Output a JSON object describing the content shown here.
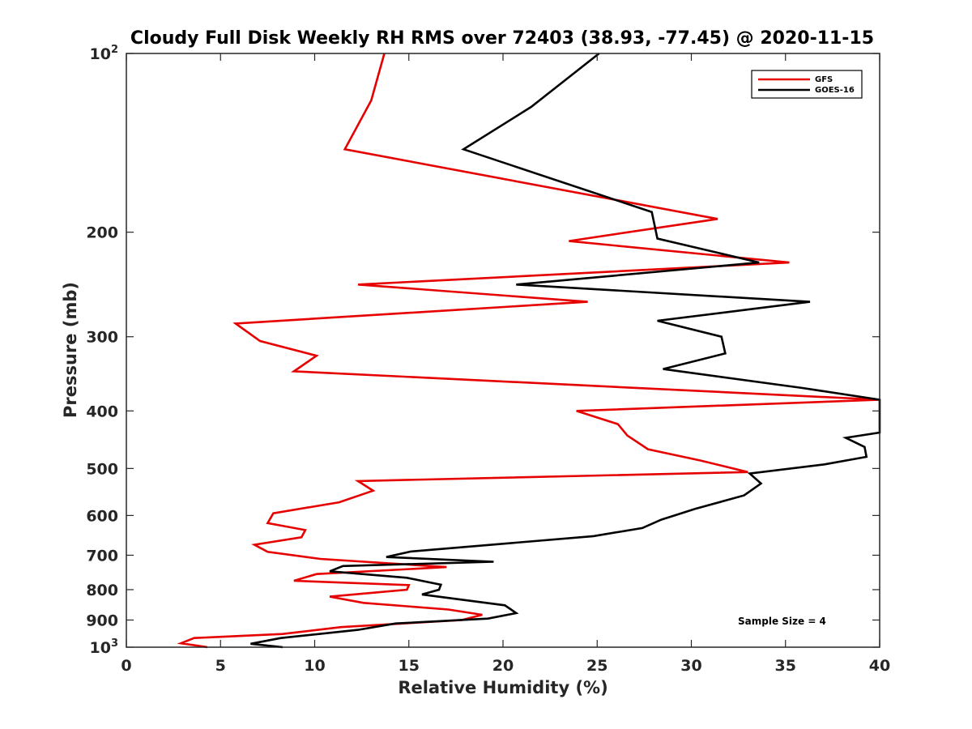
{
  "chart_data": {
    "type": "line",
    "title": "Cloudy Full Disk Weekly RH RMS over 72403 (38.93, -77.45) @ 2020-11-15",
    "xlabel": "Relative Humidity (%)",
    "ylabel": "Pressure (mb)",
    "xlim": [
      0,
      40
    ],
    "ylim": [
      100,
      1000
    ],
    "y_scale": "log",
    "y_reversed": true,
    "grid": false,
    "legend_position": "top-right",
    "x_ticks": [
      "0",
      "5",
      "10",
      "15",
      "20",
      "25",
      "30",
      "35",
      "40"
    ],
    "y_ticks": [
      {
        "value": 100,
        "base": "10",
        "exp": "2"
      },
      {
        "value": 200,
        "label": "200"
      },
      {
        "value": 300,
        "label": "300"
      },
      {
        "value": 400,
        "label": "400"
      },
      {
        "value": 500,
        "label": "500"
      },
      {
        "value": 600,
        "label": "600"
      },
      {
        "value": 700,
        "label": "700"
      },
      {
        "value": 800,
        "label": "800"
      },
      {
        "value": 900,
        "label": "900"
      },
      {
        "value": 1000,
        "base": "10",
        "exp": "3"
      }
    ],
    "annotation": "Sample Size = 4",
    "series": [
      {
        "name": "GFS",
        "color": "#e60000",
        "points": [
          [
            13.7,
            100
          ],
          [
            13,
            120
          ],
          [
            11.6,
            145
          ],
          [
            31.4,
            190
          ],
          [
            23.5,
            207
          ],
          [
            35.2,
            225
          ],
          [
            12.3,
            245
          ],
          [
            24.5,
            262
          ],
          [
            5.8,
            285
          ],
          [
            7.1,
            305
          ],
          [
            10.1,
            323
          ],
          [
            8.9,
            343
          ],
          [
            40.0,
            383
          ],
          [
            23.9,
            400
          ],
          [
            26.1,
            421
          ],
          [
            26.6,
            440
          ],
          [
            27.7,
            464
          ],
          [
            30.5,
            485
          ],
          [
            33.0,
            507
          ],
          [
            12.3,
            525
          ],
          [
            13.1,
            545
          ],
          [
            11.3,
            570
          ],
          [
            7.8,
            595
          ],
          [
            7.5,
            618
          ],
          [
            9.5,
            635
          ],
          [
            9.3,
            653
          ],
          [
            6.8,
            672
          ],
          [
            7.5,
            691
          ],
          [
            10.3,
            710
          ],
          [
            17.0,
            733
          ],
          [
            10.1,
            753
          ],
          [
            8.9,
            773
          ],
          [
            15.0,
            786
          ],
          [
            14.9,
            800
          ],
          [
            10.8,
            822
          ],
          [
            12.6,
            842
          ],
          [
            17.1,
            864
          ],
          [
            18.9,
            882
          ],
          [
            17.8,
            900
          ],
          [
            11.4,
            925
          ],
          [
            8.3,
            950
          ],
          [
            3.6,
            965
          ],
          [
            2.9,
            985
          ],
          [
            4.3,
            1000
          ]
        ]
      },
      {
        "name": "GOES-16",
        "color": "#000000",
        "points": [
          [
            25.1,
            100
          ],
          [
            21.5,
            123
          ],
          [
            17.9,
            145
          ],
          [
            27.9,
            185
          ],
          [
            28.2,
            205
          ],
          [
            33.6,
            225
          ],
          [
            20.7,
            245
          ],
          [
            36.3,
            262
          ],
          [
            28.2,
            282
          ],
          [
            31.6,
            300
          ],
          [
            31.8,
            320
          ],
          [
            28.5,
            340
          ],
          [
            35.9,
            366
          ],
          [
            40.0,
            383
          ],
          [
            40.0,
            435
          ],
          [
            38.2,
            444
          ],
          [
            39.2,
            460
          ],
          [
            39.3,
            478
          ],
          [
            37.1,
            492
          ],
          [
            33.1,
            510
          ],
          [
            33.7,
            530
          ],
          [
            32.8,
            555
          ],
          [
            30.2,
            585
          ],
          [
            28.4,
            610
          ],
          [
            27.4,
            630
          ],
          [
            24.8,
            650
          ],
          [
            15.1,
            690
          ],
          [
            13.8,
            705
          ],
          [
            19.5,
            718
          ],
          [
            11.5,
            730
          ],
          [
            10.8,
            745
          ],
          [
            14.9,
            764
          ],
          [
            16.7,
            785
          ],
          [
            16.6,
            800
          ],
          [
            15.7,
            815
          ],
          [
            20.1,
            850
          ],
          [
            20.7,
            876
          ],
          [
            19.2,
            895
          ],
          [
            14.3,
            912
          ],
          [
            12.3,
            935
          ],
          [
            8.2,
            965
          ],
          [
            6.6,
            987
          ],
          [
            8.3,
            1000
          ]
        ]
      }
    ]
  }
}
